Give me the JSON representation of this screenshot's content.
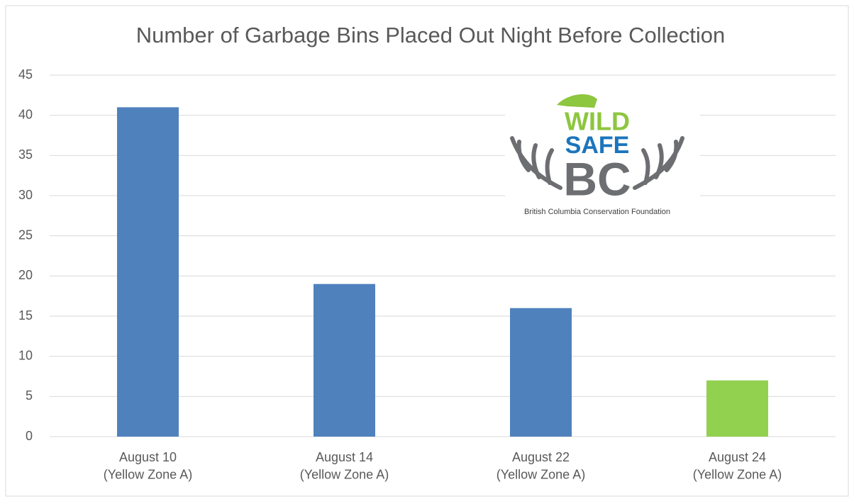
{
  "chart_data": {
    "type": "bar",
    "title": "Number of Garbage Bins Placed Out Night Before Collection",
    "categories": [
      "August 10\n(Yellow Zone A)",
      "August 14\n(Yellow Zone A)",
      "August 22\n(Yellow Zone A)",
      "August 24\n(Yellow Zone A)"
    ],
    "values": [
      41,
      19,
      16,
      7
    ],
    "colors": [
      "#4f81bd",
      "#4f81bd",
      "#4f81bd",
      "#92d050"
    ],
    "ylim": [
      0,
      45
    ],
    "yticks": [
      0,
      5,
      10,
      15,
      20,
      25,
      30,
      35,
      40,
      45
    ],
    "grid": true
  },
  "logo": {
    "wild": "WILD",
    "safe": "SAFE",
    "bc": "BC",
    "caption": "British Columbia Conservation Foundation"
  }
}
